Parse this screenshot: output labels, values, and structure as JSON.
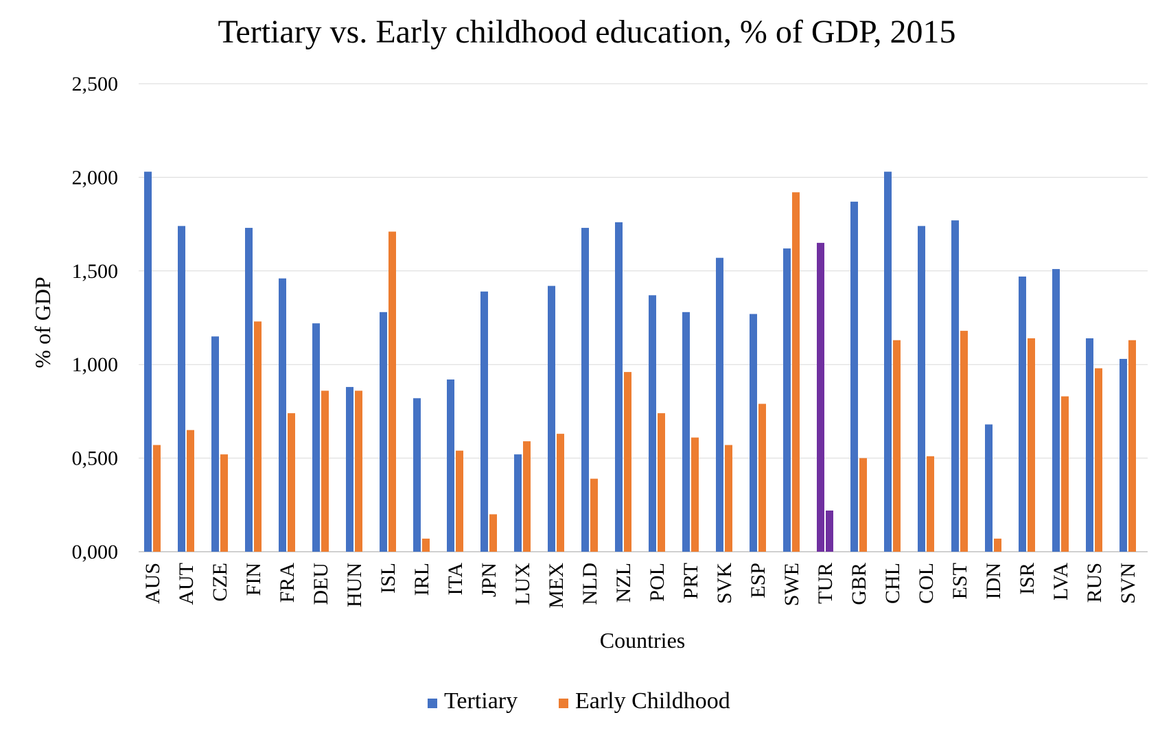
{
  "chart_data": {
    "type": "bar",
    "title": "Tertiary vs. Early childhood education, % of GDP, 2015",
    "xlabel": "Countries",
    "ylabel": "% of GDP",
    "ylim": [
      0,
      2.5
    ],
    "yticks": [
      0,
      0.5,
      1.0,
      1.5,
      2.0,
      2.5
    ],
    "ytick_labels": [
      "0,000",
      "0,500",
      "1,000",
      "1,500",
      "2,000",
      "2,500"
    ],
    "grid": true,
    "legend_position": "bottom-center",
    "categories": [
      "AUS",
      "AUT",
      "CZE",
      "FIN",
      "FRA",
      "DEU",
      "HUN",
      "ISL",
      "IRL",
      "ITA",
      "JPN",
      "LUX",
      "MEX",
      "NLD",
      "NZL",
      "POL",
      "PRT",
      "SVK",
      "ESP",
      "SWE",
      "TUR",
      "GBR",
      "CHL",
      "COL",
      "EST",
      "IDN",
      "ISR",
      "LVA",
      "RUS",
      "SVN"
    ],
    "series": [
      {
        "name": "Tertiary",
        "color": "#4472C4",
        "values": [
          2.03,
          1.74,
          1.15,
          1.73,
          1.46,
          1.22,
          0.88,
          1.28,
          0.82,
          0.92,
          1.39,
          0.52,
          1.42,
          1.73,
          1.76,
          1.37,
          1.28,
          1.57,
          1.27,
          1.62,
          1.65,
          1.87,
          2.03,
          1.74,
          1.77,
          0.68,
          1.47,
          1.51,
          1.14,
          1.03
        ]
      },
      {
        "name": "Early Childhood",
        "color": "#ED7D31",
        "values": [
          0.57,
          0.65,
          0.52,
          1.23,
          0.74,
          0.86,
          0.86,
          1.71,
          0.07,
          0.54,
          0.2,
          0.59,
          0.63,
          0.39,
          0.96,
          0.74,
          0.61,
          0.57,
          0.79,
          1.92,
          0.22,
          0.5,
          1.13,
          0.51,
          1.18,
          0.07,
          1.14,
          0.83,
          0.98,
          1.13
        ]
      }
    ],
    "highlight": {
      "category": "TUR",
      "color": "#7030A0"
    }
  }
}
